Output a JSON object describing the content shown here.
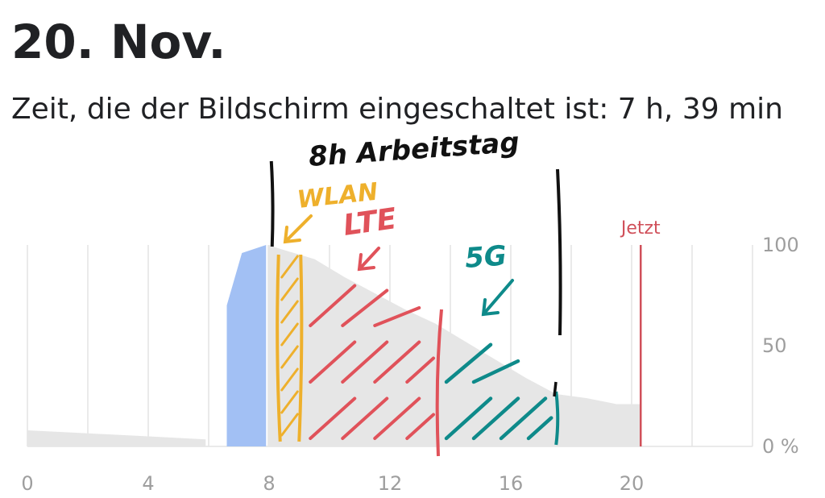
{
  "header": {
    "date": "20. Nov.",
    "screen_time": "Zeit, die der Bildschirm eingeschaltet ist: 7 h, 39 min"
  },
  "chart_data": {
    "type": "area",
    "title": "",
    "xlabel": "",
    "ylabel": "",
    "x_ticks": [
      "0",
      "4",
      "8",
      "12",
      "16",
      "20"
    ],
    "y_ticks": [
      "100",
      "50",
      "0 %"
    ],
    "xlim": [
      0,
      24
    ],
    "ylim": [
      0,
      100
    ],
    "now_marker": {
      "label": "Jetzt",
      "x": 20.3
    },
    "battery_level": [
      {
        "x": 0,
        "y": 8
      },
      {
        "x": 2,
        "y": 6.5
      },
      {
        "x": 4,
        "y": 5
      },
      {
        "x": 5.9,
        "y": 3.5
      },
      {
        "x": 5.9,
        "y": null
      },
      {
        "x": 7.95,
        "y": 100
      },
      {
        "x": 8.6,
        "y": 97
      },
      {
        "x": 9.5,
        "y": 93
      },
      {
        "x": 10.5,
        "y": 84
      },
      {
        "x": 11.5,
        "y": 76
      },
      {
        "x": 12.5,
        "y": 68
      },
      {
        "x": 13.5,
        "y": 61
      },
      {
        "x": 14.5,
        "y": 52
      },
      {
        "x": 15.5,
        "y": 43
      },
      {
        "x": 16.5,
        "y": 34
      },
      {
        "x": 17.5,
        "y": 26
      },
      {
        "x": 18.5,
        "y": 24
      },
      {
        "x": 19.5,
        "y": 21
      },
      {
        "x": 20.3,
        "y": 21
      }
    ],
    "charging": [
      {
        "x": 6.6,
        "y": 0
      },
      {
        "x": 6.6,
        "y": 70
      },
      {
        "x": 7.1,
        "y": 96
      },
      {
        "x": 7.9,
        "y": 100
      },
      {
        "x": 7.9,
        "y": 0
      }
    ],
    "colors": {
      "battery_fill": "#e6e6e6",
      "charging_fill": "#a2c0f4",
      "now_line": "#d0505a",
      "grid": "#e3e3e3",
      "ink_black": "#111111",
      "ink_wlan": "#eeb02c",
      "ink_lte": "#e0525a",
      "ink_5g": "#0e8a8a"
    }
  },
  "annotations": {
    "workday": "8h Arbeitstag",
    "wlan": "WLAN",
    "lte": "LTE",
    "g5": "5G",
    "workday_range": [
      8.1,
      17.6
    ],
    "wlan_range": [
      8.1,
      9.1
    ],
    "lte_range": [
      9.1,
      13.6
    ],
    "g5_range": [
      13.6,
      17.5
    ]
  }
}
